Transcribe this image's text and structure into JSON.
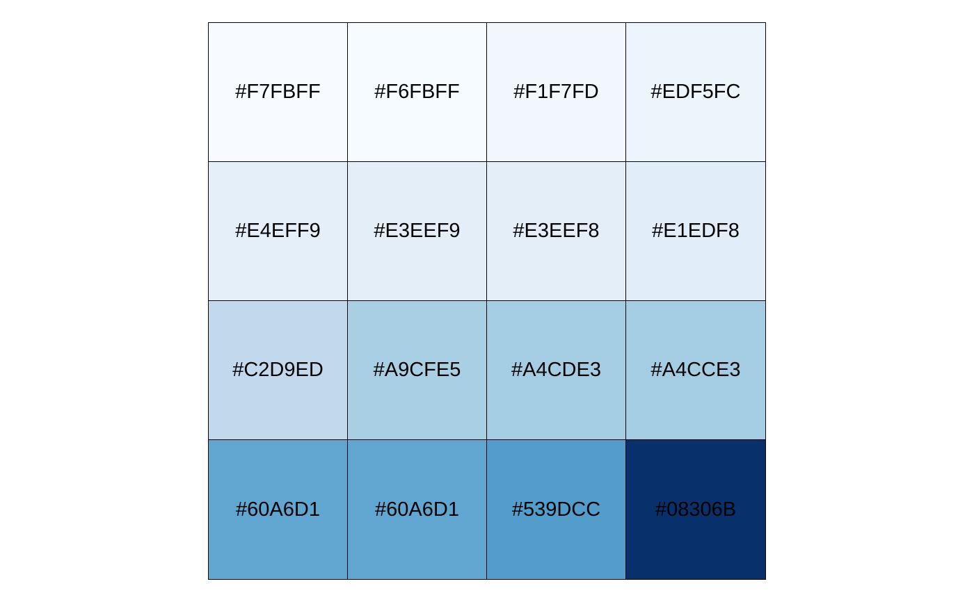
{
  "swatches": [
    {
      "label": "#F7FBFF",
      "color": "#F7FBFF"
    },
    {
      "label": "#F6FBFF",
      "color": "#F6FBFF"
    },
    {
      "label": "#F1F7FD",
      "color": "#F1F7FD"
    },
    {
      "label": "#EDF5FC",
      "color": "#EDF5FC"
    },
    {
      "label": "#E4EFF9",
      "color": "#E4EFF9"
    },
    {
      "label": "#E3EEF9",
      "color": "#E3EEF9"
    },
    {
      "label": "#E3EEF8",
      "color": "#E3EEF8"
    },
    {
      "label": "#E1EDF8",
      "color": "#E1EDF8"
    },
    {
      "label": "#C2D9ED",
      "color": "#C2D9ED"
    },
    {
      "label": "#A9CFE5",
      "color": "#A9CFE5"
    },
    {
      "label": "#A4CDE3",
      "color": "#A4CDE3"
    },
    {
      "label": "#A4CCE3",
      "color": "#A4CCE3"
    },
    {
      "label": "#60A6D1",
      "color": "#60A6D1"
    },
    {
      "label": "#60A6D1",
      "color": "#60A6D1"
    },
    {
      "label": "#539DCC",
      "color": "#539DCC"
    },
    {
      "label": "#08306B",
      "color": "#08306B"
    }
  ]
}
